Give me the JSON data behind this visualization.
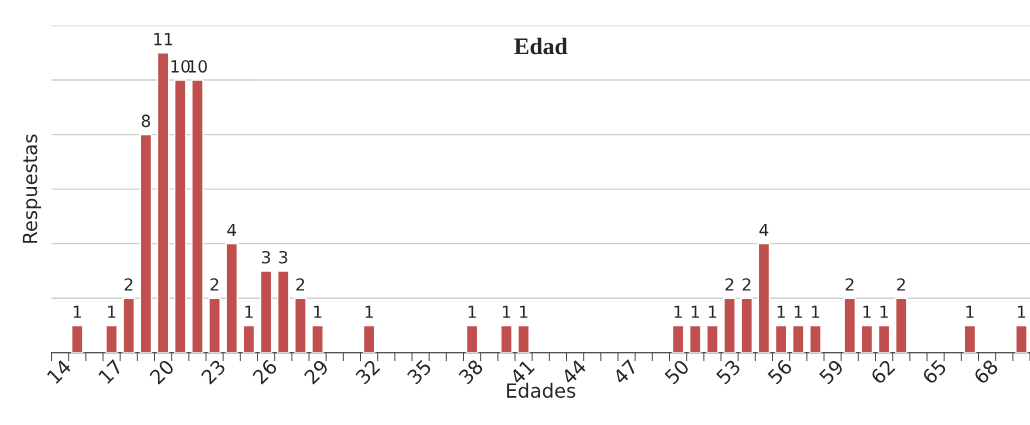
{
  "chart_data": {
    "type": "bar",
    "title": "Edad",
    "xlabel": "Edades",
    "ylabel": "Respuestas",
    "categories": [
      "14",
      null,
      null,
      "17",
      null,
      null,
      "20",
      null,
      null,
      "23",
      null,
      null,
      "26",
      null,
      null,
      "29",
      null,
      null,
      "32",
      null,
      null,
      "35",
      null,
      null,
      "38",
      null,
      null,
      "41",
      null,
      null,
      "44",
      null,
      null,
      "47",
      null,
      null,
      "50",
      null,
      null,
      "53",
      null,
      null,
      "56",
      null,
      null,
      "59",
      null,
      null,
      "62",
      null,
      null,
      "65",
      null,
      null,
      "68",
      null,
      null
    ],
    "values": [
      null,
      1,
      null,
      1,
      2,
      8,
      11,
      10,
      10,
      2,
      4,
      1,
      3,
      3,
      2,
      1,
      null,
      null,
      1,
      null,
      null,
      null,
      null,
      null,
      1,
      null,
      1,
      1,
      null,
      null,
      null,
      null,
      null,
      null,
      null,
      null,
      1,
      1,
      1,
      2,
      2,
      4,
      1,
      1,
      1,
      null,
      2,
      1,
      1,
      2,
      null,
      null,
      null,
      1,
      null,
      null,
      1
    ],
    "color": "#c0504d",
    "data_labels": true,
    "grid": "y",
    "legend": false,
    "ylim": [
      0,
      12
    ],
    "yticks": [
      {
        "value": 0,
        "label": null
      },
      {
        "value": 2,
        "label": null
      },
      {
        "value": 4,
        "label": null
      },
      {
        "value": 6,
        "label": null
      },
      {
        "value": 8,
        "label": null
      },
      {
        "value": 10,
        "label": null
      },
      {
        "value": 12,
        "label": null
      }
    ]
  }
}
